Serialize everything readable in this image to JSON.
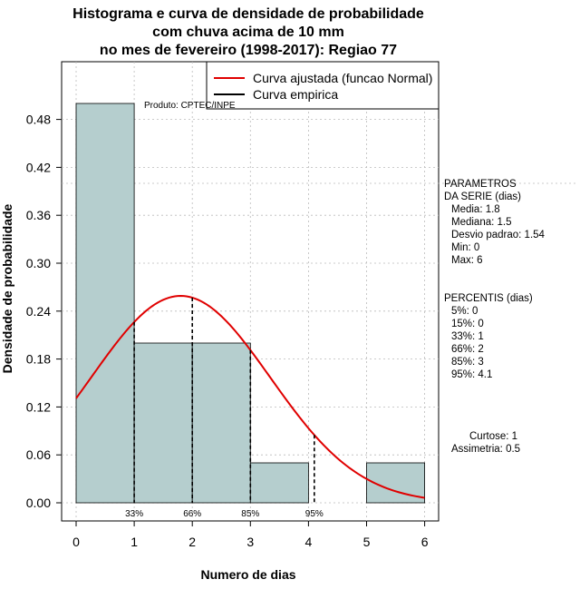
{
  "chart_data": {
    "type": "bar",
    "title_lines": [
      "Histograma e curva de densidade de probabilidade",
      "com chuva acima de 10 mm",
      "no mes de fevereiro (1998-2017): Regiao 77"
    ],
    "xlabel": "Numero de dias",
    "ylabel": "Densidade de probabilidade",
    "xlim": [
      0,
      6
    ],
    "ylim": [
      0,
      0.54
    ],
    "x_ticks": [
      "0",
      "1",
      "2",
      "3",
      "4",
      "5",
      "6"
    ],
    "y_ticks": [
      "0.00",
      "0.06",
      "0.12",
      "0.18",
      "0.24",
      "0.30",
      "0.36",
      "0.42",
      "0.48"
    ],
    "bins": [
      {
        "from": 0,
        "to": 1,
        "value": 0.5
      },
      {
        "from": 1,
        "to": 2,
        "value": 0.2
      },
      {
        "from": 2,
        "to": 3,
        "value": 0.2
      },
      {
        "from": 3,
        "to": 4,
        "value": 0.05
      },
      {
        "from": 4,
        "to": 5,
        "value": 0.0
      },
      {
        "from": 5,
        "to": 6,
        "value": 0.05
      }
    ],
    "normal_curve": {
      "mean": 1.8,
      "sd": 1.54
    },
    "percentile_lines": [
      {
        "label": "33%",
        "x": 1
      },
      {
        "label": "66%",
        "x": 2
      },
      {
        "label": "85%",
        "x": 3
      },
      {
        "label": "95%",
        "x": 4.1
      }
    ],
    "legend": [
      {
        "label": "Curva ajustada (funcao Normal)",
        "color": "#e00000"
      },
      {
        "label": "Curva empirica",
        "color": "#000000"
      }
    ],
    "product_label": "Produto: CPTEC/INPE",
    "colors": {
      "bar_fill": "#b5cece",
      "curve": "#e00000",
      "grid": "#bbbbbb"
    }
  },
  "side": {
    "params_title": [
      "PARAMETROS",
      "DA SERIE (dias)"
    ],
    "params": [
      "Media: 1.8",
      "Mediana: 1.5",
      "Desvio padrao: 1.54",
      "Min: 0",
      "Max: 6"
    ],
    "perc_title": "PERCENTIS (dias)",
    "percentis": [
      "5%: 0",
      "15%: 0",
      "33%: 1",
      "66%: 2",
      "85%: 3",
      "95%: 4.1"
    ],
    "curtose": "Curtose: 1",
    "assimetria": "Assimetria: 0.5"
  }
}
